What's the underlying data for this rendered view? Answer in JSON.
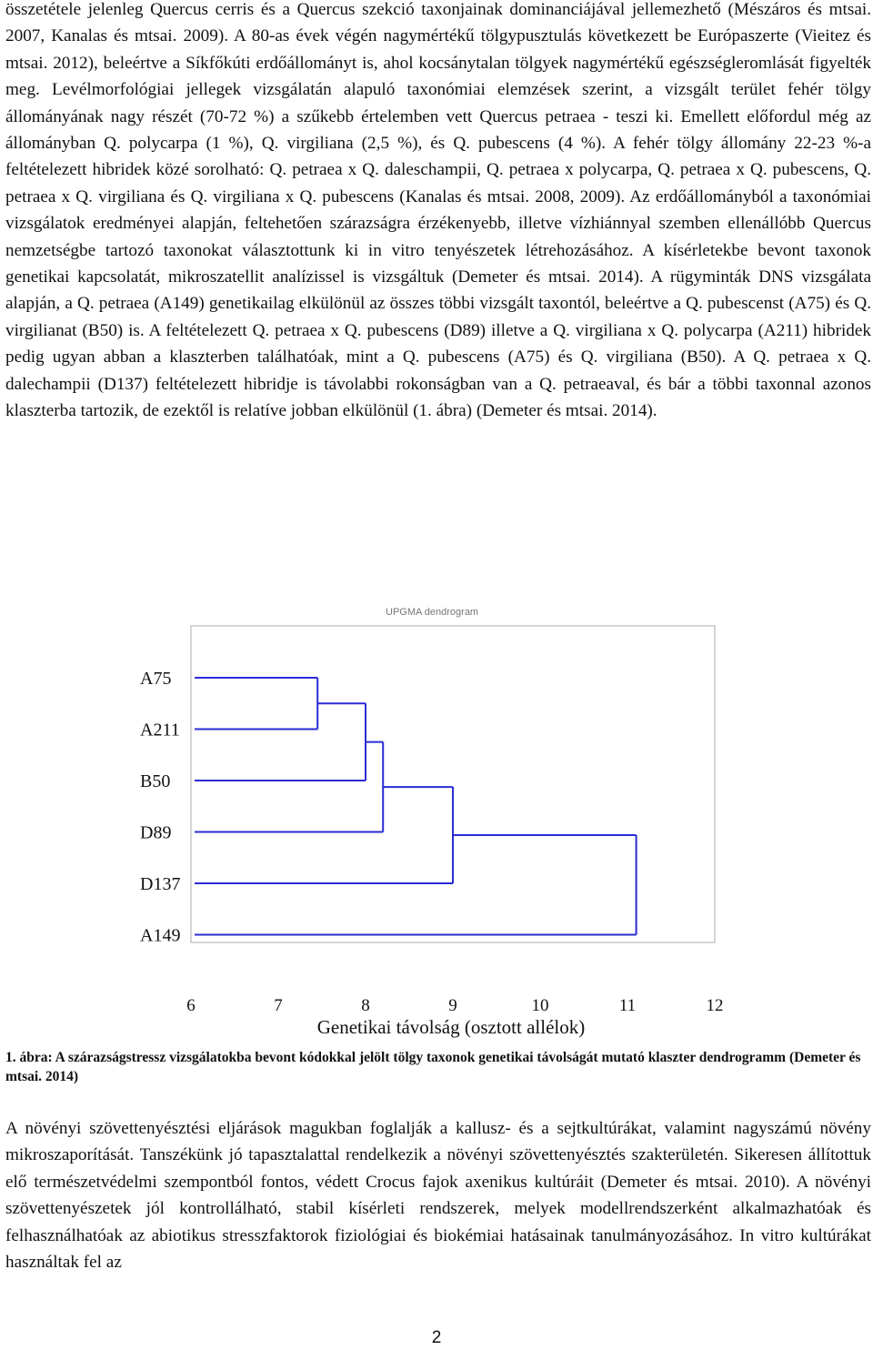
{
  "paragraphs": [
    "összetétele jelenleg Quercus cerris és a Quercus szekció taxonjainak dominanciájával jellemezhető (Mészáros és mtsai. 2007, Kanalas és mtsai. 2009). A 80-as évek végén nagymértékű tölgypusztulás következett be Európaszerte (Vieitez és mtsai. 2012), beleértve a Síkfőkúti erdőállományt is, ahol kocsánytalan tölgyek nagymértékű egészségleromlását figyelték meg. Levélmorfológiai jellegek vizsgálatán alapuló taxonómiai elemzések szerint, a vizsgált terület fehér tölgy állományának nagy részét (70-72 %) a szűkebb értelemben vett Quercus petraea - teszi ki. Emellett előfordul még az állományban Q. polycarpa (1 %), Q. virgiliana (2,5 %), és Q. pubescens (4 %). A fehér tölgy állomány 22-23 %-a feltételezett hibridek közé sorolható: Q. petraea x Q. daleschampii, Q. petraea x polycarpa, Q. petraea x Q. pubescens, Q. petraea x Q. virgiliana és Q. virgiliana x Q. pubescens (Kanalas és mtsai. 2008, 2009). Az erdőállományból a taxonómiai vizsgálatok eredményei alapján, feltehetően szárazságra érzékenyebb, illetve vízhiánnyal szemben ellenállóbb Quercus nemzetségbe tartozó taxonokat választottunk ki in vitro tenyészetek létrehozásához. A kísérletekbe bevont taxonok genetikai kapcsolatát, mikroszatellit analízissel is vizsgáltuk (Demeter és mtsai. 2014). A rügyminták DNS vizsgálata alapján, a Q. petraea (A149) genetikailag elkülönül az összes többi vizsgált taxontól, beleértve a Q. pubescenst (A75) és Q. virgilianat (B50) is. A feltételezett Q. petraea x Q. pubescens (D89) illetve a Q. virgiliana x Q. polycarpa (A211) hibridek pedig ugyan abban a klaszterben találhatóak, mint a Q. pubescens (A75) és Q. virgiliana (B50). A Q. petraea x Q. dalechampii (D137) feltételezett hibridje is távolabbi rokonságban van a Q. petraeaval, és bár a többi taxonnal azonos klaszterba tartozik, de ezektől is relatíve jobban elkülönül (1. ábra) (Demeter és mtsai. 2014).",
    "A növényi szövettenyésztési eljárások magukban foglalják a kallusz- és a sejtkultúrákat, valamint nagyszámú növény mikroszaporítását. Tanszékünk jó tapasztalattal rendelkezik a növényi szövettenyésztés szakterületén. Sikeresen állítottuk elő természetvédelmi szempontból fontos, védett Crocus fajok axenikus kultúráit (Demeter és mtsai. 2010). A növényi szövettenyészetek jól kontrollálható, stabil kísérleti rendszerek, melyek modellrendszerként alkalmazhatóak és felhasználhatóak az abiotikus stresszfaktorok fiziológiai és biokémiai hatásainak tanulmányozásához. In vitro kultúrákat használtak fel az"
  ],
  "figure": {
    "caption": "1. ábra: A szárazságstressz vizsgálatokba bevont kódokkal jelölt tölgy taxonok genetikai távolságát mutató klaszter dendrogramm (Demeter és mtsai. 2014)",
    "chart_data": {
      "type": "dendrogram",
      "title": "UPGMA dendrogram",
      "xlabel": "Genetikai távolság (osztott allélok)",
      "xlim": [
        6,
        12
      ],
      "ticks": [
        "6",
        "7",
        "8",
        "9",
        "10",
        "11",
        "12"
      ],
      "leaves": [
        "A75",
        "A211",
        "B50",
        "D89",
        "D137",
        "A149"
      ],
      "merges": [
        {
          "a": "A75",
          "b": "A211",
          "distance": 7.45
        },
        {
          "a": "A75+A211",
          "b": "B50",
          "distance": 8.0
        },
        {
          "a": "A75+A211+B50",
          "b": "D89",
          "distance": 8.2
        },
        {
          "a": "A75+A211+B50+D89",
          "b": "D137",
          "distance": 9.0
        },
        {
          "a": "A75+A211+B50+D89+D137",
          "b": "A149",
          "distance": 11.1
        }
      ],
      "line_color": "#2b2bd6"
    }
  },
  "page_number": "2"
}
